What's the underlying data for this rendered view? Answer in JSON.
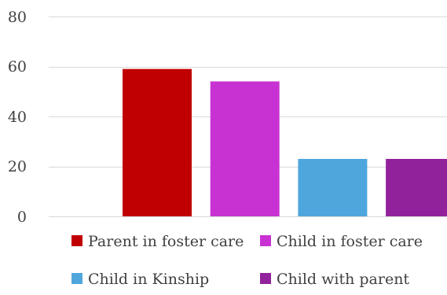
{
  "chart_data": {
    "type": "bar",
    "title": "",
    "xlabel": "",
    "ylabel": "",
    "ylim": [
      0,
      80
    ],
    "yticks": [
      "0",
      "20",
      "40",
      "60",
      "80"
    ],
    "grid": true,
    "legend_position": "bottom",
    "series": [
      {
        "name": "Parent in foster care",
        "value": 59,
        "color": "#c00000"
      },
      {
        "name": "Child in foster care",
        "value": 54,
        "color": "#c832d2"
      },
      {
        "name": "Child in Kinship",
        "value": 23,
        "color": "#4ea6dc"
      },
      {
        "name": "Child with parent",
        "value": 23,
        "color": "#92229b"
      }
    ]
  }
}
